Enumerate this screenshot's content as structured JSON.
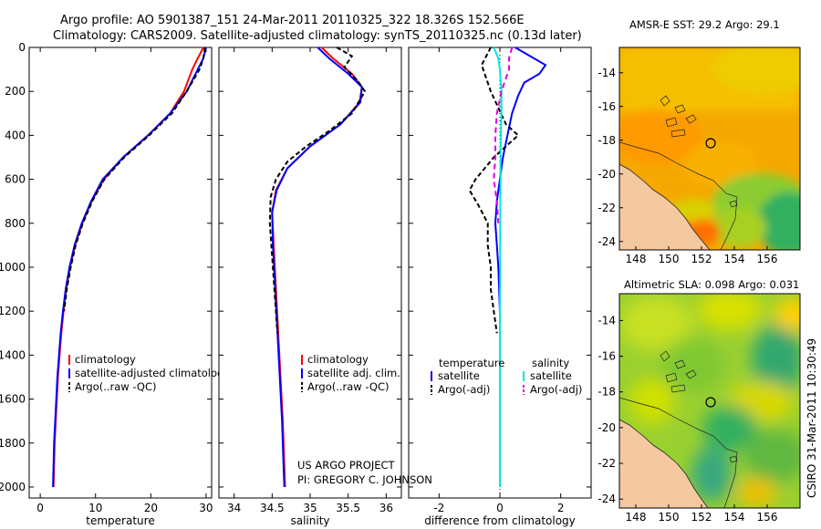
{
  "header": {
    "line1": "Argo profile: AO 5901387_151 24-Mar-2011 20110325_322 18.326S 152.566E",
    "line2": "Climatology: CARS2009. Satellite-adjusted climatology: synTS_20110325.nc (0.13d later)"
  },
  "side_stamp": "CSIRO 31-Mar-2011 10:30:49",
  "project": {
    "line1": "US ARGO PROJECT",
    "line2": "PI: GREGORY C. JOHNSON"
  },
  "colors": {
    "climatology": "#ff0000",
    "satellite": "#0000ff",
    "argo": "#000000",
    "cyan": "#00e5e5",
    "magenta": "#e000e0",
    "land": "#f5c9a0"
  },
  "chart_data": [
    {
      "id": "temperature",
      "type": "line",
      "xlabel": "temperature",
      "ylabel": "",
      "xlim": [
        -2,
        31
      ],
      "ylim": [
        0,
        2050
      ],
      "y_inverted": true,
      "xticks": [
        0,
        10,
        20,
        30
      ],
      "yticks": [
        0,
        200,
        400,
        600,
        800,
        1000,
        1200,
        1400,
        1600,
        1800,
        2000
      ],
      "legend": {
        "placement": "lower-right",
        "entries": [
          "climatology",
          "satellite-adjusted climatology",
          "Argo(..raw -QC)"
        ]
      },
      "series": [
        {
          "name": "climatology",
          "color": "#ff0000",
          "dash": "",
          "points": [
            [
              29.5,
              0
            ],
            [
              28.5,
              50
            ],
            [
              27.5,
              100
            ],
            [
              26,
              200
            ],
            [
              23.5,
              300
            ],
            [
              19.5,
              400
            ],
            [
              15,
              500
            ],
            [
              11.5,
              600
            ],
            [
              9.3,
              700
            ],
            [
              7.6,
              800
            ],
            [
              6.3,
              900
            ],
            [
              5.4,
              1000
            ],
            [
              4.7,
              1100
            ],
            [
              4.2,
              1200
            ],
            [
              3.8,
              1300
            ],
            [
              3.5,
              1400
            ],
            [
              3.2,
              1500
            ],
            [
              3.0,
              1600
            ],
            [
              2.8,
              1700
            ],
            [
              2.6,
              1800
            ],
            [
              2.5,
              1900
            ],
            [
              2.4,
              2000
            ]
          ]
        },
        {
          "name": "satellite-adjusted climatology",
          "color": "#0000ff",
          "dash": "",
          "points": [
            [
              30,
              0
            ],
            [
              29.5,
              50
            ],
            [
              28.5,
              100
            ],
            [
              26.5,
              200
            ],
            [
              23.5,
              300
            ],
            [
              19.5,
              400
            ],
            [
              15,
              500
            ],
            [
              11.3,
              600
            ],
            [
              9.2,
              700
            ],
            [
              7.5,
              800
            ],
            [
              6.2,
              900
            ],
            [
              5.3,
              1000
            ],
            [
              4.6,
              1100
            ],
            [
              4.1,
              1200
            ],
            [
              3.7,
              1300
            ],
            [
              3.4,
              1400
            ],
            [
              3.1,
              1500
            ],
            [
              2.9,
              1600
            ],
            [
              2.7,
              1700
            ],
            [
              2.5,
              1800
            ],
            [
              2.4,
              1900
            ],
            [
              2.3,
              2000
            ]
          ]
        },
        {
          "name": "Argo(..raw -QC)",
          "color": "#000000",
          "dash": "5,3",
          "points": [
            [
              29.8,
              0
            ],
            [
              29.5,
              50
            ],
            [
              28.8,
              100
            ],
            [
              26.5,
              200
            ],
            [
              23.8,
              300
            ],
            [
              19.7,
              400
            ],
            [
              15.2,
              500
            ],
            [
              11.6,
              600
            ],
            [
              9.4,
              700
            ],
            [
              7.7,
              800
            ],
            [
              6.4,
              900
            ],
            [
              5.5,
              1000
            ],
            [
              4.8,
              1100
            ],
            [
              4.3,
              1200
            ]
          ]
        }
      ]
    },
    {
      "id": "salinity",
      "type": "line",
      "xlabel": "salinity",
      "ylabel": "",
      "xlim": [
        33.8,
        36.2
      ],
      "ylim": [
        0,
        2050
      ],
      "y_inverted": true,
      "xticks": [
        34,
        34.5,
        35,
        35.5,
        36
      ],
      "yticks": [
        0,
        200,
        400,
        600,
        800,
        1000,
        1200,
        1400,
        1600,
        1800,
        2000
      ],
      "legend": {
        "placement": "lower-right",
        "entries": [
          "climatology",
          "satellite adj. clim.",
          "Argo(..raw -QC)"
        ]
      },
      "series": [
        {
          "name": "climatology",
          "color": "#ff0000",
          "dash": "",
          "points": [
            [
              35.15,
              0
            ],
            [
              35.3,
              50
            ],
            [
              35.55,
              120
            ],
            [
              35.68,
              180
            ],
            [
              35.65,
              250
            ],
            [
              35.4,
              350
            ],
            [
              35.0,
              450
            ],
            [
              34.7,
              550
            ],
            [
              34.55,
              650
            ],
            [
              34.5,
              750
            ],
            [
              34.52,
              900
            ],
            [
              34.55,
              1100
            ],
            [
              34.58,
              1300
            ],
            [
              34.61,
              1500
            ],
            [
              34.64,
              1700
            ],
            [
              34.66,
              1900
            ],
            [
              34.67,
              2000
            ]
          ]
        },
        {
          "name": "satellite adj. clim.",
          "color": "#0000ff",
          "dash": "",
          "points": [
            [
              35.1,
              0
            ],
            [
              35.25,
              50
            ],
            [
              35.5,
              120
            ],
            [
              35.68,
              180
            ],
            [
              35.66,
              250
            ],
            [
              35.4,
              350
            ],
            [
              35.0,
              450
            ],
            [
              34.7,
              550
            ],
            [
              34.56,
              650
            ],
            [
              34.5,
              750
            ],
            [
              34.51,
              900
            ],
            [
              34.54,
              1100
            ],
            [
              34.57,
              1300
            ],
            [
              34.6,
              1500
            ],
            [
              34.63,
              1700
            ],
            [
              34.65,
              1900
            ],
            [
              34.66,
              2000
            ]
          ]
        },
        {
          "name": "Argo(..raw -QC)",
          "color": "#000000",
          "dash": "5,3",
          "points": [
            [
              35.35,
              0
            ],
            [
              35.55,
              40
            ],
            [
              35.45,
              90
            ],
            [
              35.62,
              150
            ],
            [
              35.72,
              200
            ],
            [
              35.55,
              300
            ],
            [
              35.25,
              380
            ],
            [
              34.95,
              450
            ],
            [
              34.7,
              520
            ],
            [
              34.55,
              600
            ],
            [
              34.48,
              680
            ],
            [
              34.47,
              800
            ],
            [
              34.5,
              950
            ],
            [
              34.53,
              1100
            ],
            [
              34.56,
              1250
            ],
            [
              34.57,
              1300
            ]
          ]
        }
      ]
    },
    {
      "id": "difference",
      "type": "line",
      "xlabel": "difference from climatology",
      "ylabel": "",
      "xlim": [
        -3,
        3
      ],
      "ylim": [
        0,
        2050
      ],
      "y_inverted": true,
      "xticks": [
        -2,
        0,
        2
      ],
      "yticks": [
        0,
        200,
        400,
        600,
        800,
        1000,
        1200,
        1400,
        1600,
        1800,
        2000
      ],
      "legend": {
        "placement": "lower-center",
        "columns": [
          "temperature",
          "salinity"
        ],
        "entries": [
          "satellite",
          "Argo(-adj)",
          "satellite",
          "Argo(-adj)"
        ]
      },
      "series": [
        {
          "name": "temperature satellite",
          "color": "#0000ff",
          "dash": "",
          "points": [
            [
              0.5,
              0
            ],
            [
              1.0,
              40
            ],
            [
              1.5,
              80
            ],
            [
              1.3,
              120
            ],
            [
              0.8,
              160
            ],
            [
              0.6,
              220
            ],
            [
              0.4,
              300
            ],
            [
              0.25,
              400
            ],
            [
              0.1,
              500
            ],
            [
              0.0,
              600
            ],
            [
              -0.1,
              700
            ],
            [
              -0.15,
              800
            ],
            [
              -0.1,
              900
            ],
            [
              -0.05,
              1000
            ],
            [
              0,
              1200
            ],
            [
              0,
              1400
            ],
            [
              0,
              1600
            ],
            [
              0,
              1800
            ],
            [
              0,
              2000
            ]
          ]
        },
        {
          "name": "temperature Argo(-adj)",
          "color": "#000000",
          "dash": "5,3",
          "points": [
            [
              -0.3,
              0
            ],
            [
              -0.6,
              80
            ],
            [
              -0.3,
              200
            ],
            [
              0.2,
              350
            ],
            [
              0.6,
              400
            ],
            [
              -0.2,
              500
            ],
            [
              -0.8,
              600
            ],
            [
              -1.0,
              650
            ],
            [
              -0.7,
              720
            ],
            [
              -0.4,
              800
            ],
            [
              -0.4,
              900
            ],
            [
              -0.3,
              1000
            ],
            [
              -0.3,
              1100
            ],
            [
              -0.2,
              1200
            ],
            [
              -0.1,
              1300
            ]
          ]
        },
        {
          "name": "salinity satellite",
          "color": "#00e5e5",
          "dash": "",
          "points": [
            [
              -0.2,
              0
            ],
            [
              -0.05,
              50
            ],
            [
              0,
              100
            ],
            [
              0.05,
              200
            ],
            [
              0.05,
              300
            ],
            [
              0.03,
              400
            ],
            [
              0.02,
              500
            ],
            [
              0.02,
              600
            ],
            [
              0.01,
              800
            ],
            [
              0.01,
              1000
            ],
            [
              0,
              1200
            ],
            [
              0,
              1400
            ],
            [
              0,
              1600
            ],
            [
              0,
              1800
            ],
            [
              0,
              2000
            ]
          ]
        },
        {
          "name": "salinity Argo(-adj)",
          "color": "#e000e0",
          "dash": "6,4",
          "points": [
            [
              0.4,
              0
            ],
            [
              0.3,
              50
            ],
            [
              0.3,
              100
            ],
            [
              0.05,
              200
            ],
            [
              -0.1,
              300
            ],
            [
              -0.15,
              400
            ],
            [
              -0.15,
              500
            ],
            [
              -0.2,
              600
            ],
            [
              -0.1,
              700
            ],
            [
              -0.05,
              800
            ]
          ]
        }
      ]
    },
    {
      "id": "sst-map",
      "type": "heatmap",
      "title": "AMSR-E SST: 29.2  Argo: 29.1",
      "xlim": [
        147,
        158
      ],
      "ylim": [
        -24.5,
        -12.5
      ],
      "xticks": [
        148,
        150,
        152,
        154,
        156
      ],
      "yticks": [
        -14,
        -16,
        -18,
        -20,
        -22,
        -24
      ],
      "argo_location": [
        152.566,
        -18.326
      ]
    },
    {
      "id": "sla-map",
      "type": "heatmap",
      "title": "Altimetric SLA: 0.098  Argo: 0.031",
      "xlim": [
        147,
        158
      ],
      "ylim": [
        -24.5,
        -12.5
      ],
      "xticks": [
        148,
        150,
        152,
        154,
        156
      ],
      "yticks": [
        -14,
        -16,
        -18,
        -20,
        -22,
        -24
      ],
      "argo_location": [
        152.566,
        -18.326
      ]
    }
  ]
}
